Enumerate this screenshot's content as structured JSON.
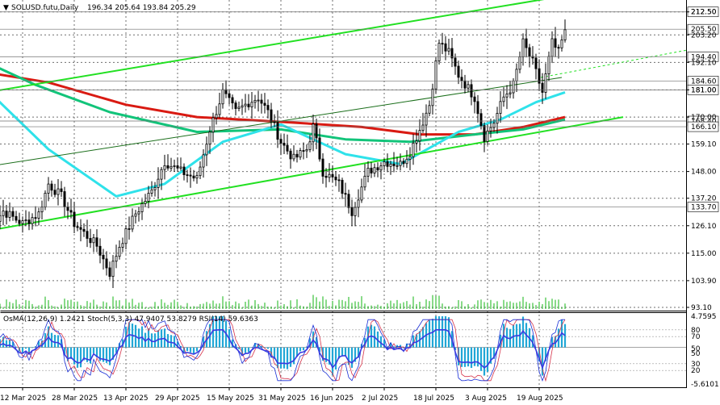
{
  "header": {
    "arrow": "▼",
    "symbol": "SOLUSD.futu,Daily",
    "ohlc": "196.34 205.64 193.84 205.29"
  },
  "colors": {
    "background": "#ffffff",
    "grid": "#6f6f6f",
    "candle": "#000000",
    "ma_red": "#d91a12",
    "ma_green": "#12c47a",
    "ma_cyan": "#2fe2ea",
    "trend_green": "#22e022",
    "osma_bar": "#21a7d6",
    "stoch_main": "#1a2fd6",
    "stoch_signal": "#d6334a",
    "rsi": "#3a3ae0",
    "marker_label_bg": "#ffffff"
  },
  "chart_data": {
    "type": "candlestick",
    "price_ticks": [
      "212.50",
      "203.20",
      "192.10",
      "181.00",
      "170.00",
      "159.10",
      "148.00",
      "137.20",
      "126.10",
      "115.00",
      "103.90",
      "93.10"
    ],
    "price_range": [
      93.1,
      216.0
    ],
    "marked_prices": [
      "212.50",
      "205.50",
      "194.40",
      "184.60",
      "181.00",
      "168.40",
      "166.10",
      "133.70"
    ],
    "x_labels": [
      "12 Mar 2025",
      "28 Mar 2025",
      "13 Apr 2025",
      "29 Apr 2025",
      "15 May 2025",
      "31 May 2025",
      "16 Jun 2025",
      "2 Jul 2025",
      "18 Jul 2025",
      "3 Aug 2025",
      "19 Aug 2025"
    ],
    "anchors": [
      {
        "x": "2025-03-01",
        "close": 124
      },
      {
        "x": "2025-03-06",
        "close": 132
      },
      {
        "x": "2025-03-12",
        "close": 127
      },
      {
        "x": "2025-03-17",
        "close": 131
      },
      {
        "x": "2025-03-20",
        "close": 143
      },
      {
        "x": "2025-03-24",
        "close": 138
      },
      {
        "x": "2025-03-28",
        "close": 127
      },
      {
        "x": "2025-04-04",
        "close": 118
      },
      {
        "x": "2025-04-08",
        "close": 107
      },
      {
        "x": "2025-04-11",
        "close": 118
      },
      {
        "x": "2025-04-16",
        "close": 131
      },
      {
        "x": "2025-04-21",
        "close": 140
      },
      {
        "x": "2025-04-25",
        "close": 152
      },
      {
        "x": "2025-04-30",
        "close": 148
      },
      {
        "x": "2025-05-05",
        "close": 145
      },
      {
        "x": "2025-05-09",
        "close": 165
      },
      {
        "x": "2025-05-13",
        "close": 180
      },
      {
        "x": "2025-05-17",
        "close": 172
      },
      {
        "x": "2025-05-21",
        "close": 176
      },
      {
        "x": "2025-05-24",
        "close": 178
      },
      {
        "x": "2025-05-27",
        "close": 172
      },
      {
        "x": "2025-05-31",
        "close": 160
      },
      {
        "x": "2025-06-04",
        "close": 153
      },
      {
        "x": "2025-06-08",
        "close": 157
      },
      {
        "x": "2025-06-10",
        "close": 166
      },
      {
        "x": "2025-06-13",
        "close": 148
      },
      {
        "x": "2025-06-18",
        "close": 143
      },
      {
        "x": "2025-06-22",
        "close": 132
      },
      {
        "x": "2025-06-27",
        "close": 148
      },
      {
        "x": "2025-07-02",
        "close": 152
      },
      {
        "x": "2025-07-07",
        "close": 151
      },
      {
        "x": "2025-07-10",
        "close": 156
      },
      {
        "x": "2025-07-13",
        "close": 165
      },
      {
        "x": "2025-07-16",
        "close": 175
      },
      {
        "x": "2025-07-19",
        "close": 200
      },
      {
        "x": "2025-07-22",
        "close": 196
      },
      {
        "x": "2025-07-25",
        "close": 187
      },
      {
        "x": "2025-07-30",
        "close": 178
      },
      {
        "x": "2025-08-02",
        "close": 162
      },
      {
        "x": "2025-08-05",
        "close": 168
      },
      {
        "x": "2025-08-08",
        "close": 178
      },
      {
        "x": "2025-08-11",
        "close": 183
      },
      {
        "x": "2025-08-14",
        "close": 200
      },
      {
        "x": "2025-08-17",
        "close": 192
      },
      {
        "x": "2025-08-20",
        "close": 180
      },
      {
        "x": "2025-08-23",
        "close": 200
      },
      {
        "x": "2025-08-25",
        "close": 196
      },
      {
        "x": "2025-08-27",
        "close": 205.29
      }
    ],
    "moving_averages": {
      "red": [
        {
          "x": "2025-03-01",
          "y": 188
        },
        {
          "x": "2025-03-20",
          "y": 184
        },
        {
          "x": "2025-04-13",
          "y": 175
        },
        {
          "x": "2025-05-05",
          "y": 170
        },
        {
          "x": "2025-06-01",
          "y": 168
        },
        {
          "x": "2025-06-25",
          "y": 166
        },
        {
          "x": "2025-07-13",
          "y": 163
        },
        {
          "x": "2025-07-30",
          "y": 163
        },
        {
          "x": "2025-08-14",
          "y": 166
        },
        {
          "x": "2025-08-27",
          "y": 170
        }
      ],
      "green": [
        {
          "x": "2025-03-01",
          "y": 192
        },
        {
          "x": "2025-03-16",
          "y": 183
        },
        {
          "x": "2025-04-08",
          "y": 172
        },
        {
          "x": "2025-05-05",
          "y": 164
        },
        {
          "x": "2025-05-31",
          "y": 165
        },
        {
          "x": "2025-06-20",
          "y": 161
        },
        {
          "x": "2025-07-10",
          "y": 160
        },
        {
          "x": "2025-07-30",
          "y": 163
        },
        {
          "x": "2025-08-14",
          "y": 165
        },
        {
          "x": "2025-08-27",
          "y": 169
        }
      ],
      "cyan": [
        {
          "x": "2025-03-01",
          "y": 181
        },
        {
          "x": "2025-03-20",
          "y": 157
        },
        {
          "x": "2025-04-10",
          "y": 138
        },
        {
          "x": "2025-04-25",
          "y": 143
        },
        {
          "x": "2025-05-13",
          "y": 160
        },
        {
          "x": "2025-05-31",
          "y": 167
        },
        {
          "x": "2025-06-20",
          "y": 155
        },
        {
          "x": "2025-07-07",
          "y": 151
        },
        {
          "x": "2025-07-25",
          "y": 164
        },
        {
          "x": "2025-08-07",
          "y": 169
        },
        {
          "x": "2025-08-18",
          "y": 176
        },
        {
          "x": "2025-08-27",
          "y": 180
        }
      ]
    },
    "trend_lines": [
      {
        "kind": "channel-upper",
        "from": {
          "x": "2025-03-01",
          "y": 180
        },
        "to": {
          "x": "2025-09-05",
          "y": 221
        }
      },
      {
        "kind": "channel-lower",
        "from": {
          "x": "2025-03-01",
          "y": 124
        },
        "to": {
          "x": "2025-09-14",
          "y": 170
        }
      },
      {
        "kind": "midline",
        "from": {
          "x": "2025-03-01",
          "y": 150
        },
        "to": {
          "x": "2025-08-26",
          "y": 186
        }
      }
    ],
    "oscillator_header": "OsMA(12,26,9) 1.2421  Stoch(5,3,3) 47.9407 53.8279  RSI(14) 59.6363",
    "oscillator_ticks": [
      "4.7595",
      "80",
      "70",
      "50",
      "50",
      "30",
      "20",
      "-5.6101"
    ],
    "osma_range": [
      -5.6101,
      4.7595
    ]
  }
}
